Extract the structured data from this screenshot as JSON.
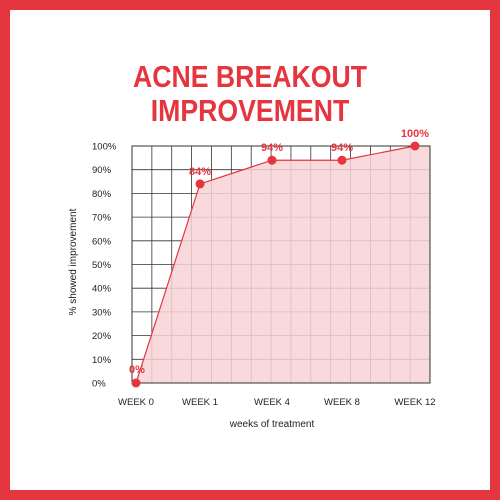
{
  "chart_data": {
    "type": "area",
    "title_lines": [
      "ACNE BREAKOUT",
      "IMPROVEMENT"
    ],
    "xlabel": "weeks of treatment",
    "ylabel": "% showed improvement",
    "categories": [
      "WEEK 0",
      "WEEK 1",
      "WEEK 4",
      "WEEK 8",
      "WEEK 12"
    ],
    "x_positions_weeks": [
      0,
      1,
      4,
      8,
      12
    ],
    "values": [
      0,
      84,
      94,
      94,
      100
    ],
    "data_labels": [
      "0%",
      "84%",
      "94%",
      "94%",
      "100%"
    ],
    "ylim": [
      0,
      100
    ],
    "y_ticks": [
      "0%",
      "10%",
      "20%",
      "30%",
      "40%",
      "50%",
      "60%",
      "70%",
      "80%",
      "90%",
      "100%"
    ],
    "grid": true,
    "colors": {
      "accent": "#e5353f",
      "fill": "#f8d3d6",
      "grid": "#333333"
    }
  }
}
